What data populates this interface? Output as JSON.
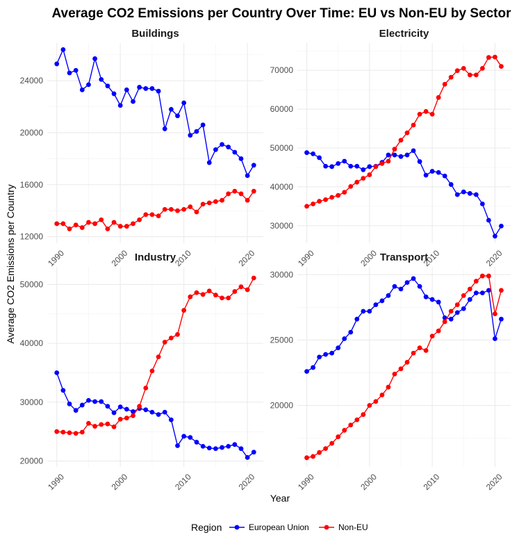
{
  "title": "Average CO2 Emissions per Country Over Time: EU vs Non-EU by Sector",
  "xlabel": "Year",
  "ylabel": "Average CO2 Emissions per Country",
  "legend": {
    "title": "Region",
    "entries": [
      {
        "name": "European Union",
        "color": "#0000ff"
      },
      {
        "name": "Non-EU",
        "color": "#ff0000"
      }
    ]
  },
  "chart_data": [
    {
      "type": "line",
      "title": "Buildings",
      "x": [
        1990,
        1991,
        1992,
        1993,
        1994,
        1995,
        1996,
        1997,
        1998,
        1999,
        2000,
        2001,
        2002,
        2003,
        2004,
        2005,
        2006,
        2007,
        2008,
        2009,
        2010,
        2011,
        2012,
        2013,
        2014,
        2015,
        2016,
        2017,
        2018,
        2019,
        2020,
        2021
      ],
      "ylim": [
        11500,
        26900
      ],
      "xlim": [
        1988.5,
        2022.5
      ],
      "xticks": [
        "1990",
        "2000",
        "2010",
        "2020"
      ],
      "yticks": [
        "12000",
        "16000",
        "20000",
        "24000"
      ],
      "series": [
        {
          "name": "European Union",
          "values": [
            25300,
            26400,
            24600,
            24800,
            23300,
            23700,
            25700,
            24100,
            23600,
            23000,
            22100,
            23300,
            22400,
            23500,
            23400,
            23400,
            23200,
            20300,
            21800,
            21300,
            22300,
            19800,
            20100,
            20600,
            17700,
            18700,
            19100,
            18900,
            18500,
            18000,
            16700,
            17500
          ]
        },
        {
          "name": "Non-EU",
          "values": [
            13000,
            13000,
            12600,
            12900,
            12700,
            13100,
            13000,
            13300,
            12600,
            13100,
            12800,
            12800,
            13000,
            13300,
            13700,
            13700,
            13600,
            14100,
            14100,
            14000,
            14100,
            14300,
            13900,
            14500,
            14600,
            14700,
            14800,
            15300,
            15500,
            15300,
            14800,
            15500
          ]
        }
      ]
    },
    {
      "type": "line",
      "title": "Electricity",
      "x": [
        1990,
        1991,
        1992,
        1993,
        1994,
        1995,
        1996,
        1997,
        1998,
        1999,
        2000,
        2001,
        2002,
        2003,
        2004,
        2005,
        2006,
        2007,
        2008,
        2009,
        2010,
        2011,
        2012,
        2013,
        2014,
        2015,
        2016,
        2017,
        2018,
        2019,
        2020,
        2021
      ],
      "ylim": [
        25500,
        77000
      ],
      "xlim": [
        1988.5,
        2022.5
      ],
      "xticks": [
        "1990",
        "2000",
        "2010",
        "2020"
      ],
      "yticks": [
        "30000",
        "40000",
        "50000",
        "60000",
        "70000"
      ],
      "series": [
        {
          "name": "European Union",
          "values": [
            48800,
            48500,
            47500,
            45300,
            45200,
            46000,
            46600,
            45300,
            45300,
            44400,
            45200,
            45300,
            46300,
            48200,
            48200,
            47800,
            48200,
            49300,
            46500,
            43000,
            44000,
            43700,
            42800,
            40600,
            38000,
            38700,
            38300,
            38000,
            35600,
            31400,
            27300,
            29900
          ]
        },
        {
          "name": "Non-EU",
          "values": [
            35000,
            35600,
            36300,
            36700,
            37300,
            37800,
            38600,
            40100,
            41200,
            42200,
            43100,
            45200,
            46000,
            46600,
            49700,
            52000,
            53900,
            55900,
            58700,
            59400,
            58700,
            63000,
            66400,
            68200,
            69900,
            70500,
            68800,
            68800,
            70500,
            73300,
            73400,
            71000
          ]
        }
      ]
    },
    {
      "type": "line",
      "title": "Industry",
      "x": [
        1990,
        1991,
        1992,
        1993,
        1994,
        1995,
        1996,
        1997,
        1998,
        1999,
        2000,
        2001,
        2002,
        2003,
        2004,
        2005,
        2006,
        2007,
        2008,
        2009,
        2010,
        2011,
        2012,
        2013,
        2014,
        2015,
        2016,
        2017,
        2018,
        2019,
        2020,
        2021
      ],
      "ylim": [
        19000,
        53000
      ],
      "xlim": [
        1988.5,
        2022.5
      ],
      "xticks": [
        "1990",
        "2000",
        "2010",
        "2020"
      ],
      "yticks": [
        "20000",
        "30000",
        "40000",
        "50000"
      ],
      "series": [
        {
          "name": "European Union",
          "values": [
            35000,
            32000,
            29700,
            28600,
            29500,
            30300,
            30100,
            30100,
            29300,
            28200,
            29200,
            28800,
            28400,
            28900,
            28700,
            28300,
            27900,
            28300,
            27000,
            22600,
            24200,
            24000,
            23200,
            22500,
            22200,
            22100,
            22300,
            22500,
            22800,
            22100,
            20600,
            21500
          ]
        },
        {
          "name": "Non-EU",
          "values": [
            25000,
            24900,
            24800,
            24700,
            24900,
            26400,
            25900,
            26200,
            26300,
            25800,
            27100,
            27300,
            27700,
            29300,
            32400,
            35300,
            37700,
            40200,
            40900,
            41500,
            45600,
            47900,
            48600,
            48300,
            48900,
            48200,
            47700,
            47700,
            48800,
            49600,
            49100,
            51100
          ]
        }
      ]
    },
    {
      "type": "line",
      "title": "Transport",
      "x": [
        1990,
        1991,
        1992,
        1993,
        1994,
        1995,
        1996,
        1997,
        1998,
        1999,
        2000,
        2001,
        2002,
        2003,
        2004,
        2005,
        2006,
        2007,
        2008,
        2009,
        2010,
        2011,
        2012,
        2013,
        2014,
        2015,
        2016,
        2017,
        2018,
        2019,
        2020,
        2021
      ],
      "ylim": [
        15300,
        30600
      ],
      "xlim": [
        1988.5,
        2022.5
      ],
      "xticks": [
        "1990",
        "2000",
        "2010",
        "2020"
      ],
      "yticks": [
        "20000",
        "25000",
        "30000"
      ],
      "series": [
        {
          "name": "European Union",
          "values": [
            22600,
            22900,
            23700,
            23900,
            24000,
            24400,
            25100,
            25600,
            26600,
            27200,
            27200,
            27700,
            28000,
            28400,
            29100,
            28900,
            29400,
            29700,
            29100,
            28300,
            28100,
            27900,
            26700,
            26600,
            27100,
            27400,
            28100,
            28600,
            28600,
            28800,
            25100,
            26600
          ]
        },
        {
          "name": "Non-EU",
          "values": [
            16000,
            16100,
            16400,
            16700,
            17100,
            17600,
            18100,
            18500,
            18900,
            19300,
            20000,
            20300,
            20800,
            21400,
            22400,
            22800,
            23300,
            24000,
            24400,
            24200,
            25300,
            25700,
            26400,
            27200,
            27700,
            28400,
            28900,
            29500,
            29900,
            29900,
            27000,
            28800
          ]
        }
      ]
    }
  ]
}
